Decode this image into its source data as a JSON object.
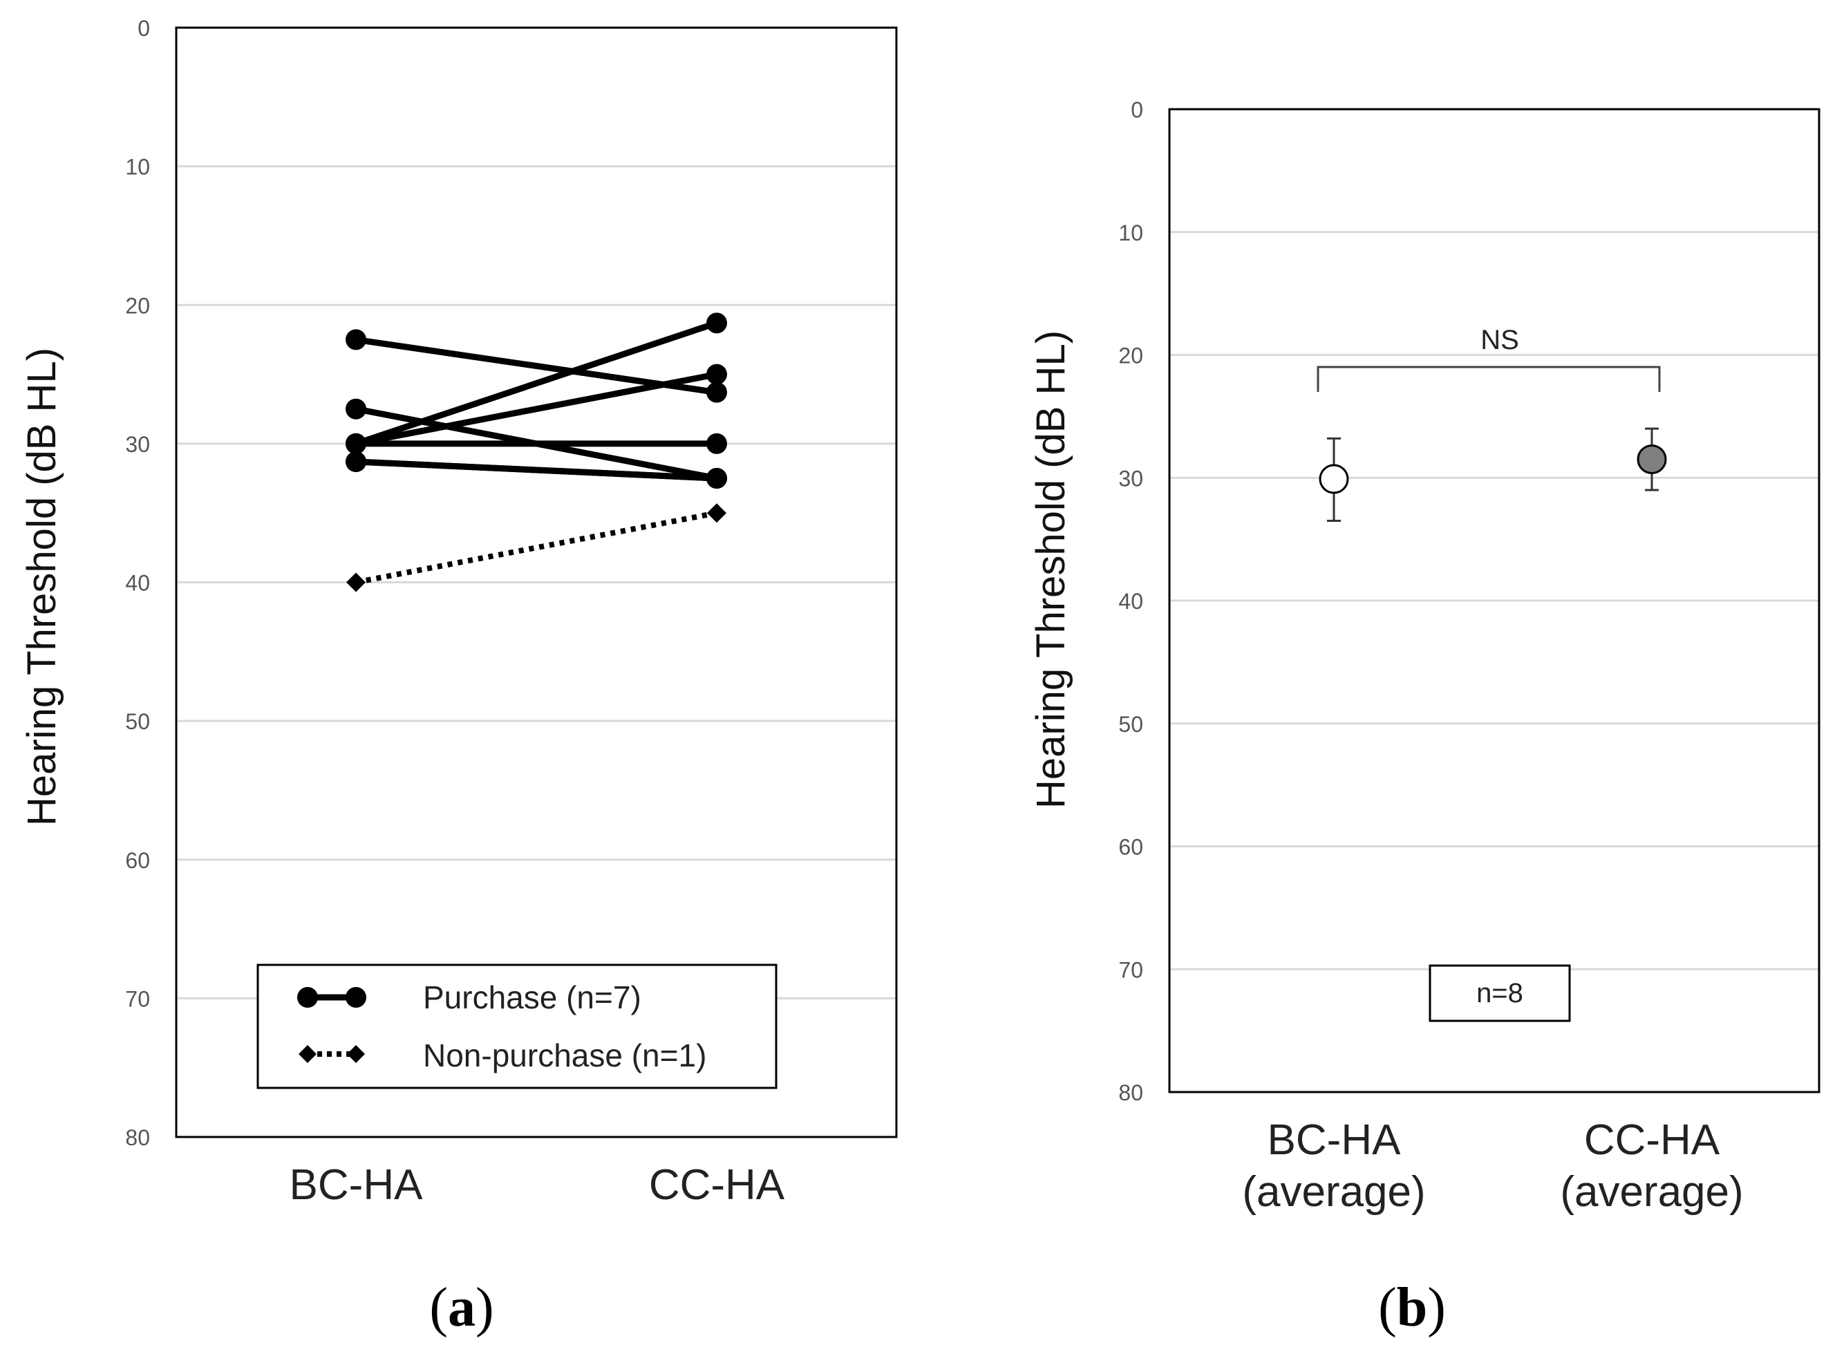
{
  "chart_data": [
    {
      "panel": "(a)",
      "panel_letter": "a",
      "type": "line",
      "ylabel": "Hearing Threshold (dB HL)",
      "xlabel": "",
      "ylim": [
        0,
        80
      ],
      "y_inverted": true,
      "yticks": [
        0,
        10,
        20,
        30,
        40,
        50,
        60,
        70,
        80
      ],
      "grid": true,
      "categories": [
        "BC-HA",
        "CC-HA"
      ],
      "series": [
        {
          "name": "Purchase (n=7)",
          "group": "purchase",
          "values": [
            22.5,
            26.3
          ]
        },
        {
          "name": "Purchase (n=7)",
          "group": "purchase",
          "values": [
            27.5,
            32.5
          ]
        },
        {
          "name": "Purchase (n=7)",
          "group": "purchase",
          "values": [
            30,
            21.3
          ]
        },
        {
          "name": "Purchase (n=7)",
          "group": "purchase",
          "values": [
            30,
            25
          ]
        },
        {
          "name": "Purchase (n=7)",
          "group": "purchase",
          "values": [
            30,
            30
          ]
        },
        {
          "name": "Purchase (n=7)",
          "group": "purchase",
          "values": [
            31.3,
            32.5
          ]
        },
        {
          "name": "Purchase (n=7)",
          "group": "purchase",
          "values": [
            31.3,
            32.5
          ]
        },
        {
          "name": "Non-purchase (n=1)",
          "group": "non-purchase",
          "values": [
            40,
            35
          ]
        }
      ],
      "legend": {
        "position": "bottom-center",
        "entries": [
          {
            "label": "Purchase (n=7)",
            "marker": "circle",
            "line": "solid"
          },
          {
            "label": "Non-purchase (n=1)",
            "marker": "diamond",
            "line": "dotted"
          }
        ]
      }
    },
    {
      "panel": "(b)",
      "panel_letter": "b",
      "type": "scatter",
      "ylabel": "Hearing Threshold (dB HL)",
      "xlabel": "",
      "ylim": [
        0,
        80
      ],
      "y_inverted": true,
      "yticks": [
        0,
        10,
        20,
        30,
        40,
        50,
        60,
        70,
        80
      ],
      "grid": true,
      "categories": [
        {
          "line1": "BC-HA",
          "line2": "(average)"
        },
        {
          "line1": "CC-HA",
          "line2": "(average)"
        }
      ],
      "points": [
        {
          "category": "BC-HA (average)",
          "mean": 30.1,
          "err_low": 26.8,
          "err_high": 33.5,
          "fill": "#ffffff"
        },
        {
          "category": "CC-HA (average)",
          "mean": 28.5,
          "err_low": 26.0,
          "err_high": 31.0,
          "fill": "#7f7f7f"
        }
      ],
      "significance": {
        "label": "NS"
      },
      "annotation_box": {
        "text": "n=8"
      }
    }
  ]
}
